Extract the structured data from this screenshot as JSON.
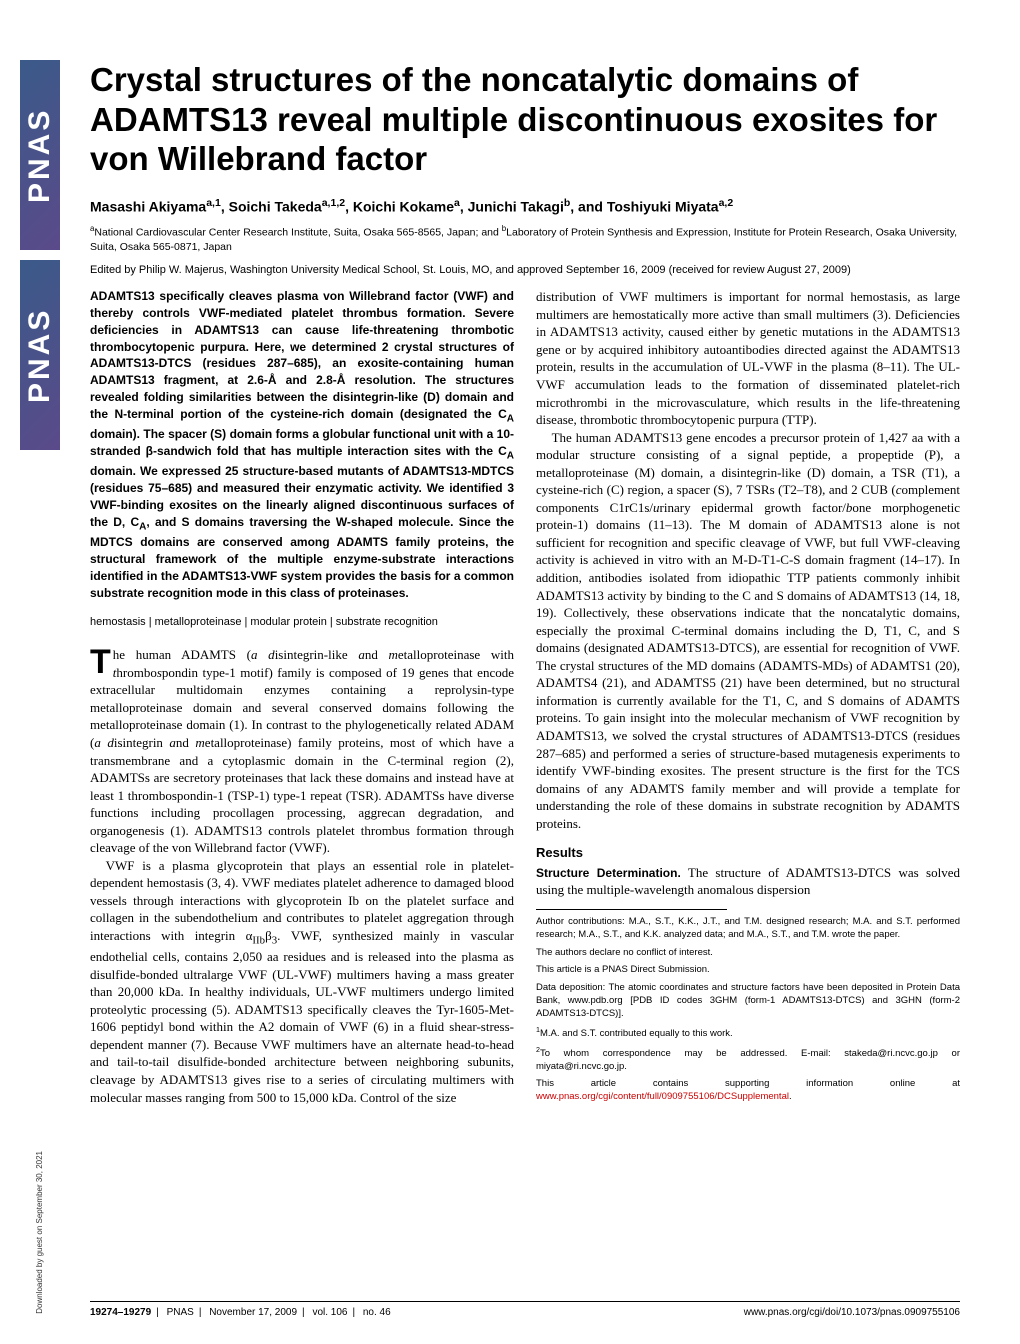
{
  "logo": {
    "text": "PNAS"
  },
  "title": "Crystal structures of the noncatalytic domains of ADAMTS13 reveal multiple discontinuous exosites for von Willebrand factor",
  "authors_html": "Masashi Akiyama<sup>a,1</sup>, Soichi Takeda<sup>a,1,2</sup>, Koichi Kokame<sup>a</sup>, Junichi Takagi<sup>b</sup>, and Toshiyuki Miyata<sup>a,2</sup>",
  "affiliations_html": "<sup>a</sup>National Cardiovascular Center Research Institute, Suita, Osaka 565-8565, Japan; and <sup>b</sup>Laboratory of Protein Synthesis and Expression, Institute for Protein Research, Osaka University, Suita, Osaka 565-0871, Japan",
  "edited": "Edited by Philip W. Majerus, Washington University Medical School, St. Louis, MO, and approved September 16, 2009 (received for review August 27, 2009)",
  "abstract_html": "ADAMTS13 specifically cleaves plasma von Willebrand factor (VWF) and thereby controls VWF-mediated platelet thrombus formation. Severe deficiencies in ADAMTS13 can cause life-threatening thrombotic thrombocytopenic purpura. Here, we determined 2 crystal structures of ADAMTS13-DTCS (residues 287–685), an exosite-containing human ADAMTS13 fragment, at 2.6-Å and 2.8-Å resolution. The structures revealed folding similarities between the disintegrin-like (D) domain and the N-terminal portion of the cysteine-rich domain (designated the C<sub>A</sub> domain). The spacer (S) domain forms a globular functional unit with a 10-stranded β-sandwich fold that has multiple interaction sites with the C<sub>A</sub> domain. We expressed 25 structure-based mutants of ADAMTS13-MDTCS (residues 75–685) and measured their enzymatic activity. We identified 3 VWF-binding exosites on the linearly aligned discontinuous surfaces of the D, C<sub>A</sub>, and S domains traversing the W-shaped molecule. Since the MDTCS domains are conserved among ADAMTS family proteins, the structural framework of the multiple enzyme-substrate interactions identified in the ADAMTS13-VWF system provides the basis for a common substrate recognition mode in this class of proteinases.",
  "keywords": "hemostasis | metalloproteinase | modular protein | substrate recognition",
  "left_body": [
    "he human ADAMTS (<span class='ital'>a d</span>isintegrin-like <span class='ital'>a</span>nd <span class='ital'>m</span>etalloproteinase with <span class='ital'>t</span>hrombo<span class='ital'>s</span>pondin type-1 motif) family is composed of 19 genes that encode extracellular multidomain enzymes containing a reprolysin-type metalloproteinase domain and several conserved domains following the metalloproteinase domain (1). In contrast to the phylogenetically related ADAM (<span class='ital'>a d</span>isintegrin <span class='ital'>a</span>nd <span class='ital'>m</span>etalloproteinase) family proteins, most of which have a transmembrane and a cytoplasmic domain in the C-terminal region (2), ADAMTSs are secretory proteinases that lack these domains and instead have at least 1 thrombospondin-1 (TSP-1) type-1 repeat (TSR). ADAMTSs have diverse functions including procollagen processing, aggrecan degradation, and organogenesis (1). ADAMTS13 controls platelet thrombus formation through cleavage of the von Willebrand factor (VWF).",
    "VWF is a plasma glycoprotein that plays an essential role in platelet-dependent hemostasis (3, 4). VWF mediates platelet adherence to damaged blood vessels through interactions with glycoprotein Ib on the platelet surface and collagen in the subendothelium and contributes to platelet aggregation through interactions with integrin α<sub>IIb</sub>β<sub>3</sub>. VWF, synthesized mainly in vascular endothelial cells, contains 2,050 aa residues and is released into the plasma as disulfide-bonded ultralarge VWF (UL-VWF) multimers having a mass greater than 20,000 kDa. In healthy individuals, UL-VWF multimers undergo limited proteolytic processing (5). ADAMTS13 specifically cleaves the Tyr-1605-Met-1606 peptidyl bond within the A2 domain of VWF (6) in a fluid shear-stress-dependent manner (7). Because VWF multimers have an alternate head-to-head and tail-to-tail disulfide-bonded architecture between neighboring subunits, cleavage by ADAMTS13 gives rise to a series of circulating multimers with molecular masses ranging from 500 to 15,000 kDa. Control of the size"
  ],
  "right_body": [
    "distribution of VWF multimers is important for normal hemostasis, as large multimers are hemostatically more active than small multimers (3). Deficiencies in ADAMTS13 activity, caused either by genetic mutations in the ADAMTS13 gene or by acquired inhibitory autoantibodies directed against the ADAMTS13 protein, results in the accumulation of UL-VWF in the plasma (8–11). The UL-VWF accumulation leads to the formation of disseminated platelet-rich microthrombi in the microvasculature, which results in the life-threatening disease, thrombotic thrombocytopenic purpura (TTP).",
    "The human ADAMTS13 gene encodes a precursor protein of 1,427 aa with a modular structure consisting of a signal peptide, a propeptide (P), a metalloproteinase (M) domain, a disintegrin-like (D) domain, a TSR (T1), a cysteine-rich (C) region, a spacer (S), 7 TSRs (T2–T8), and 2 CUB (<span class='ital'>c</span>omplement components C1rC1s/<span class='ital'>u</span>rinary epidermal growth factor/<span class='ital'>b</span>one morphogenetic protein-1) domains (11–13). The M domain of ADAMTS13 alone is not sufficient for recognition and specific cleavage of VWF, but full VWF-cleaving activity is achieved in vitro with an M-D-T1-C-S domain fragment (14–17). In addition, antibodies isolated from idiopathic TTP patients commonly inhibit ADAMTS13 activity by binding to the C and S domains of ADAMTS13 (14, 18, 19). Collectively, these observations indicate that the noncatalytic domains, especially the proximal C-terminal domains including the D, T1, C, and S domains (designated ADAMTS13-DTCS), are essential for recognition of VWF. The crystal structures of the MD domains (ADAMTS-MDs) of ADAMTS1 (20), ADAMTS4 (21), and ADAMTS5 (21) have been determined, but no structural information is currently available for the T1, C, and S domains of ADAMTS proteins. To gain insight into the molecular mechanism of VWF recognition by ADAMTS13, we solved the crystal structures of ADAMTS13-DTCS (residues 287–685) and performed a series of structure-based mutagenesis experiments to identify VWF-binding exosites. The present structure is the first for the TCS domains of any ADAMTS family member and will provide a template for understanding the role of these domains in substrate recognition by ADAMTS proteins."
  ],
  "results_head": "Results",
  "struct_det_lead": "Structure Determination.",
  "struct_det_text": " The structure of ADAMTS13-DTCS was solved using the multiple-wavelength anomalous dispersion",
  "footnotes": [
    "Author contributions: M.A., S.T., K.K., J.T., and T.M. designed research; M.A. and S.T. performed research; M.A., S.T., and K.K. analyzed data; and M.A., S.T., and T.M. wrote the paper.",
    "The authors declare no conflict of interest.",
    "This article is a PNAS Direct Submission.",
    "Data deposition: The atomic coordinates and structure factors have been deposited in Protein Data Bank, www.pdb.org [PDB ID codes 3GHM (form-1 ADAMTS13-DTCS) and 3GHN (form-2 ADAMTS13-DTCS)].",
    "<sup>1</sup>M.A. and S.T. contributed equally to this work.",
    "<sup>2</sup>To whom correspondence may be addressed. E-mail: stakeda@ri.ncvc.go.jp or miyata@ri.ncvc.go.jp.",
    "This article contains supporting information online at <a href='#'>www.pnas.org/cgi/content/full/0909755106/DCSupplemental</a>."
  ],
  "footer": {
    "pages": "19274–19279",
    "journal": "PNAS",
    "date": "November 17, 2009",
    "vol": "vol. 106",
    "no": "no. 46",
    "doi": "www.pnas.org/cgi/doi/10.1073/pnas.0909755106"
  },
  "download_note": "Downloaded by guest on September 30, 2021"
}
